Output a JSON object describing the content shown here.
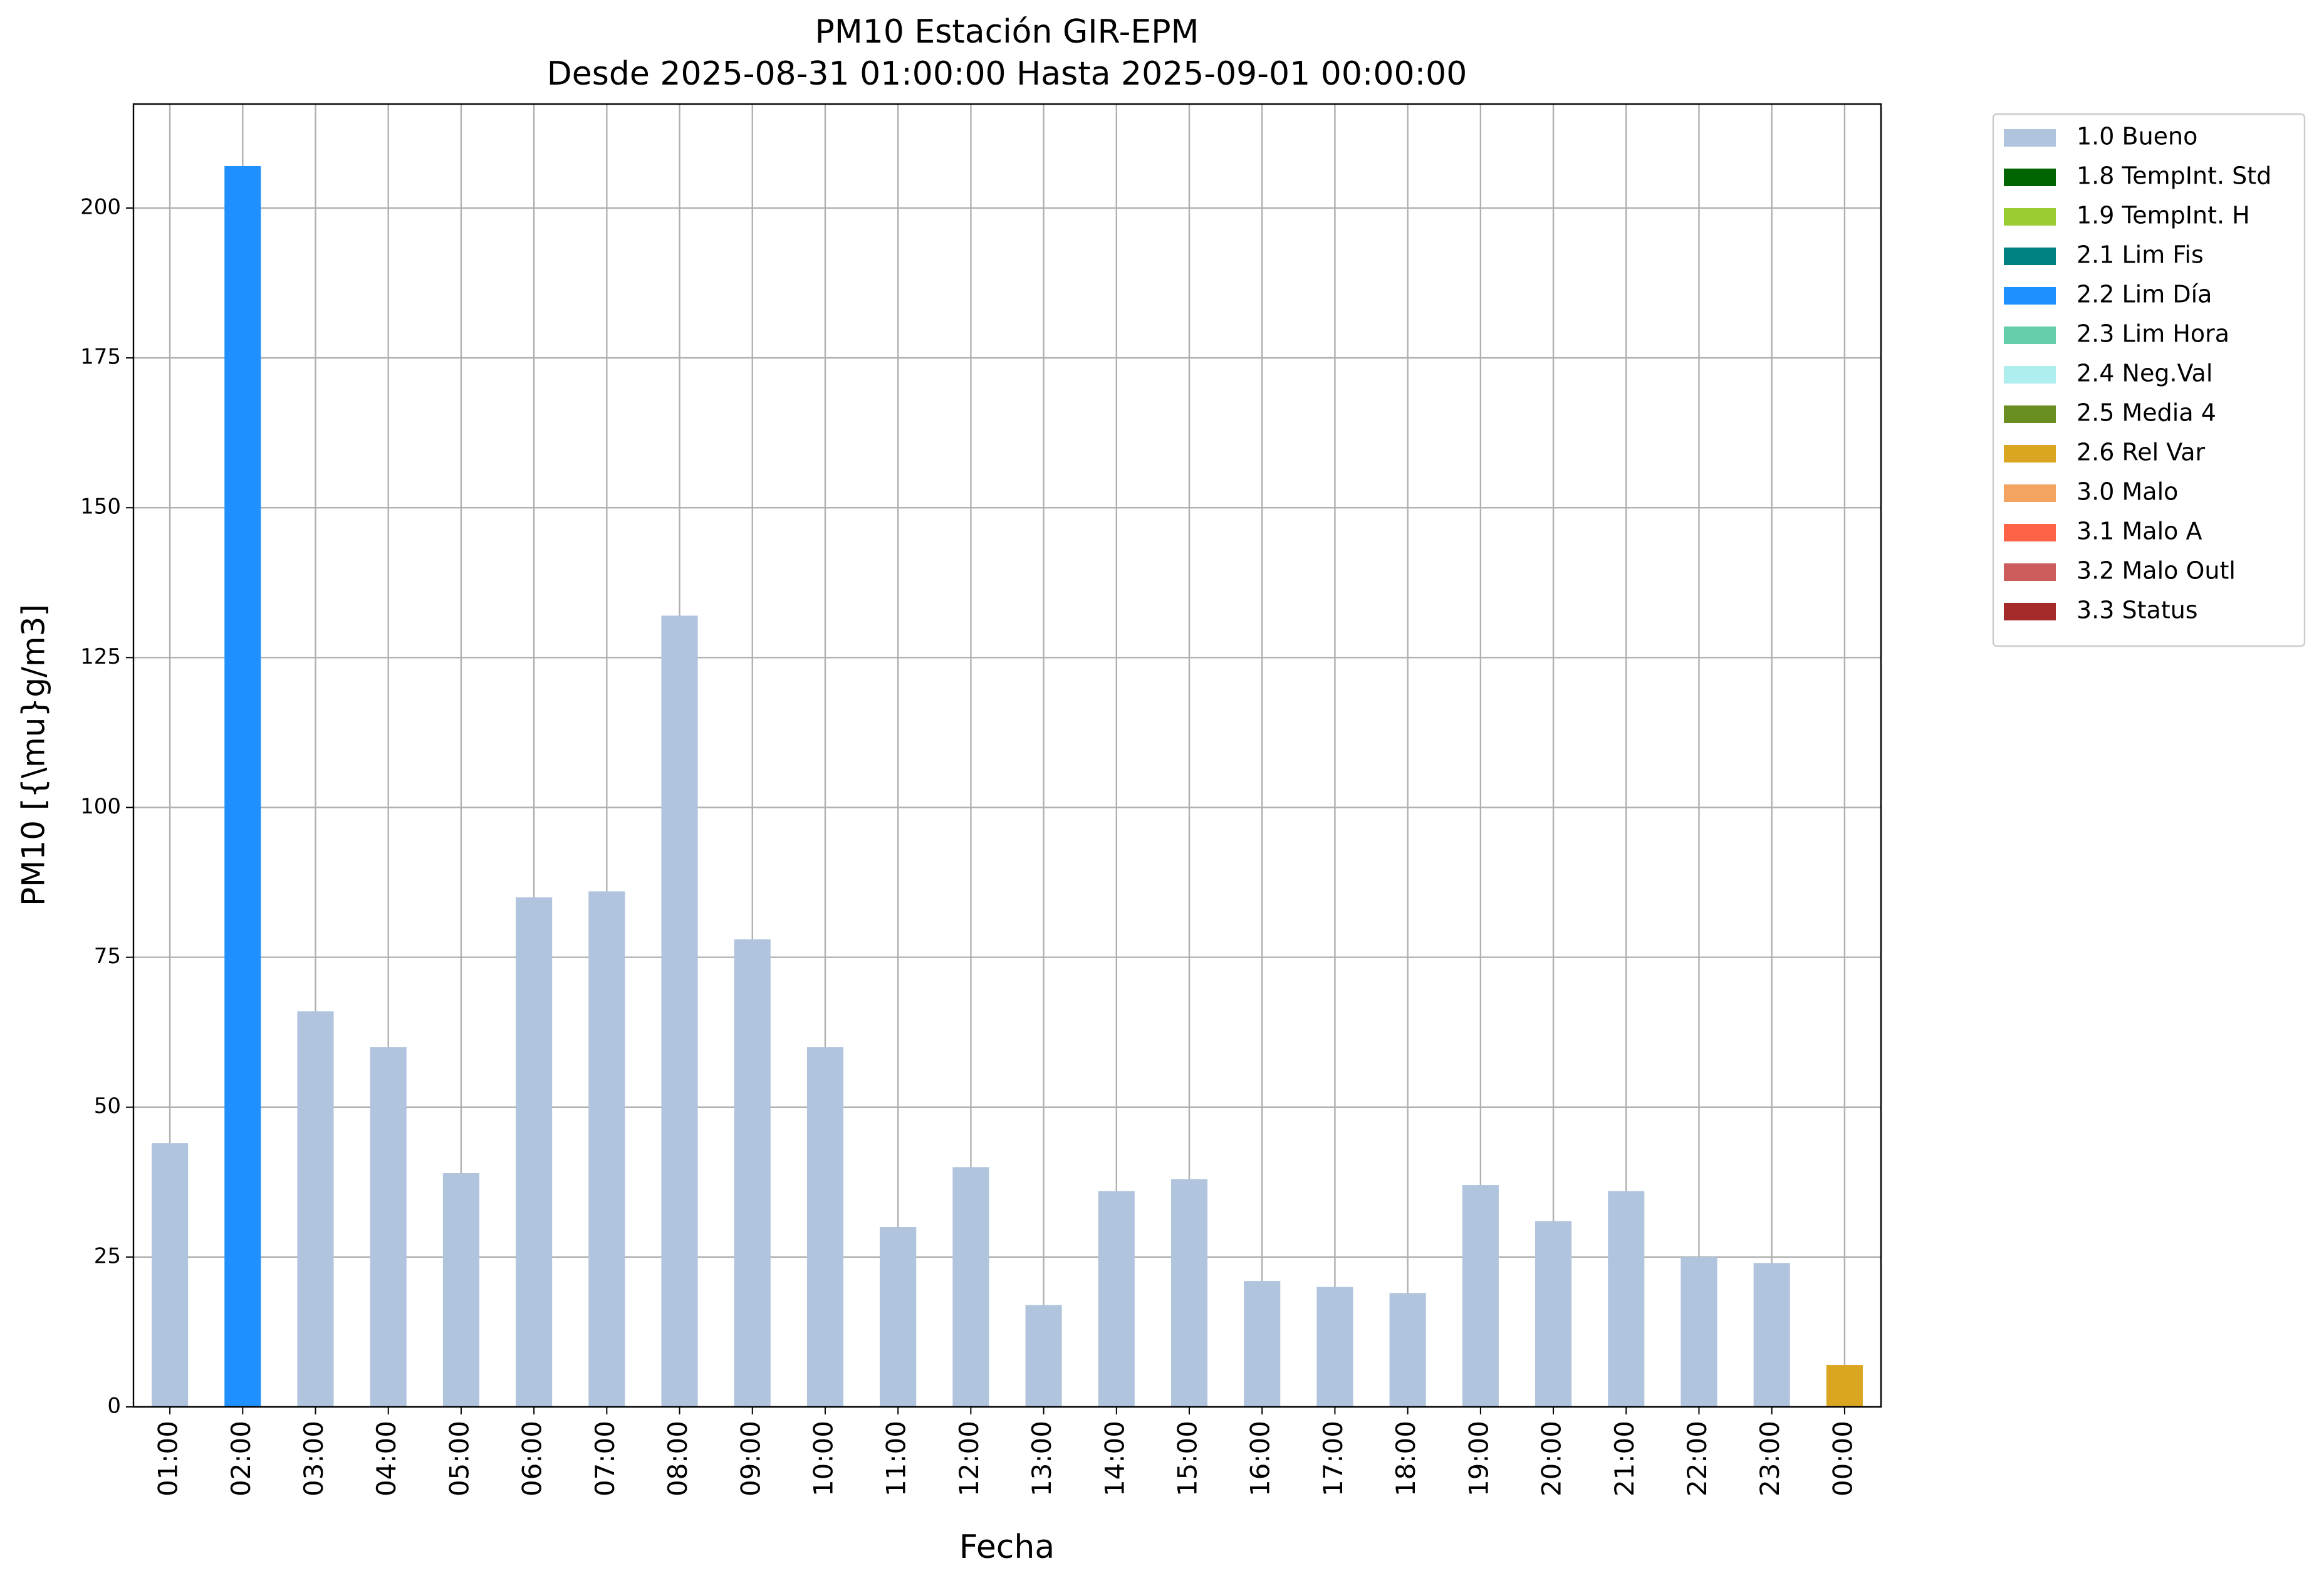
{
  "chart_data": {
    "type": "stacked_bar",
    "title": "PM10 Estación GIR-EPM",
    "subtitle": "Desde 2025-08-31 01:00:00 Hasta 2025-09-01 00:00:00",
    "x_label": "Fecha",
    "y_label": "PM10 [{\\mu}g/m3]",
    "categories": [
      "01:00",
      "02:00",
      "03:00",
      "04:00",
      "05:00",
      "06:00",
      "07:00",
      "08:00",
      "09:00",
      "10:00",
      "11:00",
      "12:00",
      "13:00",
      "14:00",
      "15:00",
      "16:00",
      "17:00",
      "18:00",
      "19:00",
      "20:00",
      "21:00",
      "22:00",
      "23:00",
      "00:00"
    ],
    "series": [
      {
        "name": "1.0 Bueno",
        "color": "#b0c4de",
        "values": [
          44,
          null,
          66,
          60,
          39,
          85,
          86,
          132,
          78,
          60,
          30,
          40,
          17,
          36,
          38,
          21,
          20,
          19,
          37,
          31,
          36,
          25,
          24,
          null
        ]
      },
      {
        "name": "1.8 TempInt. Std",
        "color": "#006400",
        "values": [
          null,
          null,
          null,
          null,
          null,
          null,
          null,
          null,
          null,
          null,
          null,
          null,
          null,
          null,
          null,
          null,
          null,
          null,
          null,
          null,
          null,
          null,
          null,
          null
        ]
      },
      {
        "name": "1.9 TempInt. H",
        "color": "#9acd32",
        "values": [
          null,
          null,
          null,
          null,
          null,
          null,
          null,
          null,
          null,
          null,
          null,
          null,
          null,
          null,
          null,
          null,
          null,
          null,
          null,
          null,
          null,
          null,
          null,
          null
        ]
      },
      {
        "name": "2.1 Lim Fis",
        "color": "#008080",
        "values": [
          null,
          null,
          null,
          null,
          null,
          null,
          null,
          null,
          null,
          null,
          null,
          null,
          null,
          null,
          null,
          null,
          null,
          null,
          null,
          null,
          null,
          null,
          null,
          null
        ]
      },
      {
        "name": "2.2 Lim Día",
        "color": "#1e90ff",
        "values": [
          null,
          207,
          null,
          null,
          null,
          null,
          null,
          null,
          null,
          null,
          null,
          null,
          null,
          null,
          null,
          null,
          null,
          null,
          null,
          null,
          null,
          null,
          null,
          null
        ]
      },
      {
        "name": "2.3 Lim Hora",
        "color": "#66cdaa",
        "values": [
          null,
          null,
          null,
          null,
          null,
          null,
          null,
          null,
          null,
          null,
          null,
          null,
          null,
          null,
          null,
          null,
          null,
          null,
          null,
          null,
          null,
          null,
          null,
          null
        ]
      },
      {
        "name": "2.4 Neg.Val",
        "color": "#afeeee",
        "values": [
          null,
          null,
          null,
          null,
          null,
          null,
          null,
          null,
          null,
          null,
          null,
          null,
          null,
          null,
          null,
          null,
          null,
          null,
          null,
          null,
          null,
          null,
          null,
          null
        ]
      },
      {
        "name": "2.5 Media 4",
        "color": "#6b8e23",
        "values": [
          null,
          null,
          null,
          null,
          null,
          null,
          null,
          null,
          null,
          null,
          null,
          null,
          null,
          null,
          null,
          null,
          null,
          null,
          null,
          null,
          null,
          null,
          null,
          null
        ]
      },
      {
        "name": "2.6 Rel Var",
        "color": "#daa520",
        "values": [
          null,
          null,
          null,
          null,
          null,
          null,
          null,
          null,
          null,
          null,
          null,
          null,
          null,
          null,
          null,
          null,
          null,
          null,
          null,
          null,
          null,
          null,
          null,
          7
        ]
      },
      {
        "name": "3.0 Malo",
        "color": "#f4a460",
        "values": [
          null,
          null,
          null,
          null,
          null,
          null,
          null,
          null,
          null,
          null,
          null,
          null,
          null,
          null,
          null,
          null,
          null,
          null,
          null,
          null,
          null,
          null,
          null,
          null
        ]
      },
      {
        "name": "3.1 Malo A",
        "color": "#ff6347",
        "values": [
          null,
          null,
          null,
          null,
          null,
          null,
          null,
          null,
          null,
          null,
          null,
          null,
          null,
          null,
          null,
          null,
          null,
          null,
          null,
          null,
          null,
          null,
          null,
          null
        ]
      },
      {
        "name": "3.2 Malo Outl",
        "color": "#cd5c5c",
        "values": [
          null,
          null,
          null,
          null,
          null,
          null,
          null,
          null,
          null,
          null,
          null,
          null,
          null,
          null,
          null,
          null,
          null,
          null,
          null,
          null,
          null,
          null,
          null,
          null
        ]
      },
      {
        "name": "3.3 Status",
        "color": "#a52a2a",
        "values": [
          null,
          null,
          null,
          null,
          null,
          null,
          null,
          null,
          null,
          null,
          null,
          null,
          null,
          null,
          null,
          null,
          null,
          null,
          null,
          null,
          null,
          null,
          null,
          null
        ]
      }
    ],
    "ylim": [
      0,
      217.35
    ],
    "yticks": [
      0,
      25,
      50,
      75,
      100,
      125,
      150,
      175,
      200
    ],
    "grid": true,
    "legend": "outside-right"
  }
}
